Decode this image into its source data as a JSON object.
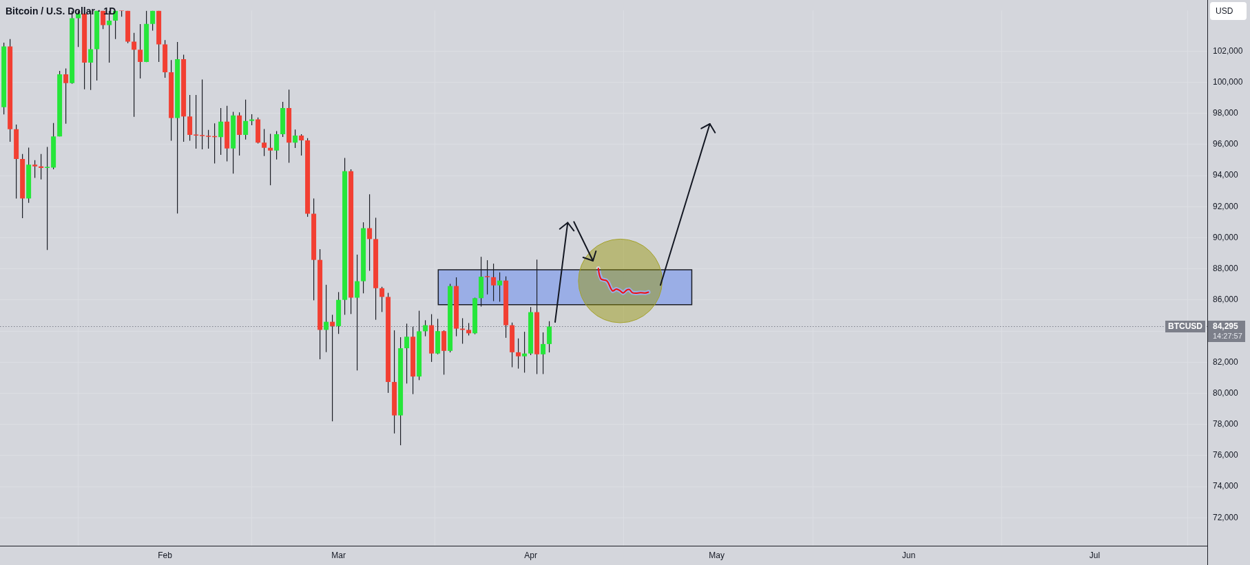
{
  "chart_data": {
    "type": "candlestick",
    "title": "Bitcoin / U.S. Dollar · 1D",
    "ylabel": "USD",
    "x": [
      "--01-06",
      "--01-07",
      "--01-08",
      "--01-09",
      "--01-10",
      "--01-11",
      "--01-12",
      "--01-13",
      "--01-14",
      "--01-15",
      "--01-16",
      "--01-17",
      "--01-18",
      "--01-19",
      "--01-20",
      "--01-21",
      "--01-22",
      "--01-23",
      "--01-24",
      "--01-25",
      "--01-26",
      "--01-27",
      "--01-28",
      "--01-29",
      "--01-30",
      "--01-31",
      "--02-01",
      "--02-02",
      "--02-03",
      "--02-04",
      "--02-05",
      "--02-06",
      "--02-07",
      "--02-08",
      "--02-09",
      "--02-10",
      "--02-11",
      "--02-12",
      "--02-13",
      "--02-14",
      "--02-15",
      "--02-16",
      "--02-17",
      "--02-18",
      "--02-19",
      "--02-20",
      "--02-21",
      "--02-22",
      "--02-23",
      "--02-24",
      "--02-25",
      "--02-26",
      "--02-27",
      "--02-28",
      "--03-01",
      "--03-02",
      "--03-03",
      "--03-04",
      "--03-05",
      "--03-06",
      "--03-07",
      "--03-08",
      "--03-09",
      "--03-10",
      "--03-11",
      "--03-12",
      "--03-13",
      "--03-14",
      "--03-15",
      "--03-16",
      "--03-17",
      "--03-18",
      "--03-19",
      "--03-20",
      "--03-21",
      "--03-22",
      "--03-23",
      "--03-24",
      "--03-25",
      "--03-26",
      "--03-27",
      "--03-28",
      "--03-29",
      "--03-30",
      "--03-31",
      "--04-01",
      "--04-02",
      "--04-03",
      "--04-04"
    ],
    "ohlc": [
      [
        98400,
        102550,
        97940,
        102310
      ],
      [
        102310,
        102780,
        96180,
        96980
      ],
      [
        96980,
        97280,
        92530,
        95070
      ],
      [
        95070,
        95390,
        91260,
        92530
      ],
      [
        92530,
        95800,
        92250,
        94710
      ],
      [
        94710,
        94990,
        93850,
        94590
      ],
      [
        94590,
        95390,
        93750,
        94490
      ],
      [
        94490,
        95840,
        89220,
        94520
      ],
      [
        94520,
        97380,
        94410,
        96520
      ],
      [
        96520,
        100730,
        96520,
        100510
      ],
      [
        100510,
        100890,
        97340,
        99950
      ],
      [
        99950,
        104600,
        99900,
        104120
      ],
      [
        104120,
        104600,
        102270,
        104420
      ],
      [
        104420,
        104600,
        99550,
        101270
      ],
      [
        101270,
        104600,
        99510,
        102130
      ],
      [
        102130,
        104600,
        100110,
        104600
      ],
      [
        104600,
        104600,
        103420,
        103680
      ],
      [
        103680,
        104600,
        101270,
        103960
      ],
      [
        103960,
        104600,
        102780,
        104600
      ],
      [
        104600,
        104600,
        104220,
        104600
      ],
      [
        104600,
        104600,
        102520,
        102620
      ],
      [
        102620,
        103180,
        97780,
        102090
      ],
      [
        102090,
        103740,
        100250,
        101310
      ],
      [
        101310,
        104600,
        101300,
        103760
      ],
      [
        103760,
        104600,
        103320,
        104600
      ],
      [
        104600,
        104600,
        101310,
        102440
      ],
      [
        102440,
        102720,
        100290,
        100650
      ],
      [
        100650,
        101430,
        96240,
        97700
      ],
      [
        97700,
        102590,
        91560,
        101490
      ],
      [
        101490,
        101770,
        96180,
        97800
      ],
      [
        97800,
        99190,
        96240,
        96620
      ],
      [
        96620,
        99190,
        95730,
        96580
      ],
      [
        96580,
        100180,
        95690,
        96540
      ],
      [
        96540,
        96940,
        95730,
        96500
      ],
      [
        96500,
        97360,
        94780,
        96480
      ],
      [
        96480,
        98350,
        95340,
        97470
      ],
      [
        97470,
        98490,
        94910,
        95740
      ],
      [
        95740,
        98100,
        94130,
        97870
      ],
      [
        97870,
        98070,
        95290,
        96620
      ],
      [
        96620,
        98890,
        96320,
        97520
      ],
      [
        97520,
        97950,
        97240,
        97620
      ],
      [
        97620,
        97740,
        96070,
        96120
      ],
      [
        96120,
        96990,
        95260,
        95790
      ],
      [
        95790,
        96690,
        93380,
        95610
      ],
      [
        95610,
        96860,
        95040,
        96660
      ],
      [
        96660,
        98740,
        96490,
        98350
      ],
      [
        98350,
        99530,
        94830,
        96120
      ],
      [
        96120,
        96960,
        95780,
        96570
      ],
      [
        96570,
        96660,
        95290,
        96260
      ],
      [
        96260,
        96410,
        91350,
        91550
      ],
      [
        91550,
        92530,
        85980,
        88580
      ],
      [
        88580,
        89270,
        82190,
        84080
      ],
      [
        84080,
        86980,
        82650,
        84600
      ],
      [
        84600,
        85050,
        78200,
        84320
      ],
      [
        84320,
        86510,
        83820,
        86010
      ],
      [
        86010,
        95140,
        85050,
        94280
      ],
      [
        94280,
        94410,
        85100,
        86150
      ],
      [
        86150,
        88920,
        81470,
        87210
      ],
      [
        87210,
        91000,
        86430,
        90620
      ],
      [
        90620,
        92800,
        87880,
        89920
      ],
      [
        89920,
        91290,
        84730,
        86760
      ],
      [
        86760,
        86850,
        85230,
        86200
      ],
      [
        86200,
        86460,
        80030,
        80730
      ],
      [
        80730,
        84050,
        77420,
        78580
      ],
      [
        78580,
        83610,
        76660,
        82900
      ],
      [
        82900,
        84480,
        80630,
        83640
      ],
      [
        83640,
        84290,
        79950,
        81080
      ],
      [
        81080,
        85310,
        80850,
        83990
      ],
      [
        83990,
        84700,
        83670,
        84380
      ],
      [
        84380,
        85090,
        82020,
        82560
      ],
      [
        82560,
        84790,
        82510,
        84000
      ],
      [
        84000,
        84050,
        81200,
        82730
      ],
      [
        82730,
        87040,
        82630,
        86900
      ],
      [
        86900,
        87460,
        83670,
        84160
      ],
      [
        84160,
        84830,
        83190,
        84080
      ],
      [
        84080,
        84520,
        83720,
        83860
      ],
      [
        83860,
        86150,
        83800,
        86120
      ],
      [
        86120,
        88780,
        85580,
        87500
      ],
      [
        87500,
        88560,
        86360,
        87470
      ],
      [
        87470,
        88340,
        85930,
        86940
      ],
      [
        86940,
        87780,
        85890,
        87250
      ],
      [
        87250,
        87520,
        83570,
        84380
      ],
      [
        84380,
        84550,
        81680,
        82640
      ],
      [
        82640,
        83530,
        81590,
        82380
      ],
      [
        82380,
        83960,
        81330,
        82560
      ],
      [
        82560,
        85550,
        82460,
        85220
      ],
      [
        85220,
        88600,
        81240,
        82510
      ],
      [
        82510,
        83920,
        81240,
        83170
      ],
      [
        83170,
        84640,
        82630,
        84295
      ]
    ],
    "colors": [
      "#26e63a",
      "#f23f32",
      "#f23f32",
      "#f23f32",
      "#26e63a",
      "#f23f32",
      "#f23f32",
      "#26e63a",
      "#26e63a",
      "#26e63a",
      "#f23f32",
      "#26e63a",
      "#26e63a",
      "#f23f32",
      "#26e63a",
      "#26e63a",
      "#f23f32",
      "#26e63a",
      "#26e63a",
      "#f23f32",
      "#f23f32",
      "#f23f32",
      "#f23f32",
      "#26e63a",
      "#26e63a",
      "#f23f32",
      "#f23f32",
      "#f23f32",
      "#26e63a",
      "#f23f32",
      "#f23f32",
      "#f23f32",
      "#f23f32",
      "#f23f32",
      "#f23f32",
      "#26e63a",
      "#f23f32",
      "#26e63a",
      "#f23f32",
      "#26e63a",
      "#26e63a",
      "#f23f32",
      "#f23f32",
      "#f23f32",
      "#26e63a",
      "#26e63a",
      "#f23f32",
      "#26e63a",
      "#f23f32",
      "#f23f32",
      "#f23f32",
      "#f23f32",
      "#26e63a",
      "#f23f32",
      "#26e63a",
      "#26e63a",
      "#f23f32",
      "#26e63a",
      "#26e63a",
      "#f23f32",
      "#f23f32",
      "#f23f32",
      "#f23f32",
      "#f23f32",
      "#26e63a",
      "#26e63a",
      "#f23f32",
      "#26e63a",
      "#26e63a",
      "#f23f32",
      "#26e63a",
      "#f23f32",
      "#26e63a",
      "#f23f32",
      "#f23f32",
      "#f23f32",
      "#26e63a",
      "#26e63a",
      "#f23f32",
      "#f23f32",
      "#26e63a",
      "#f23f32",
      "#f23f32",
      "#f23f32",
      "#26e63a",
      "#26e63a",
      "#f23f32",
      "#26e63a",
      "#26e63a"
    ],
    "series": [
      {
        "type": "line",
        "color": "#f20d0d",
        "x": [
          "--04-11T22:00",
          "--04-12T01:00",
          "--04-12T10:00",
          "--04-13T04:00",
          "--04-13T12:00",
          "--04-13T22:00",
          "--04-14T06:00",
          "--04-14T20:00",
          "--04-15T09:00",
          "--04-15T22:00",
          "--04-16T12:00",
          "--04-16T21:00",
          "--04-17T10:00",
          "--04-17T23:00",
          "--04-18T17:00",
          "--04-19T11:00",
          "--04-20T00:00"
        ],
        "values": [
          88030,
          87690,
          87330,
          87260,
          87120,
          86750,
          86580,
          86710,
          86610,
          86450,
          86650,
          86680,
          86470,
          86440,
          86470,
          86450,
          86510
        ]
      }
    ],
    "xlim": [
      "--01-05T09:00",
      "--07-19T04:00"
    ],
    "xticks": [
      {
        "value": "--02-01",
        "label": "Feb"
      },
      {
        "value": "--03-01",
        "label": "Mar"
      },
      {
        "value": "--04-01",
        "label": "Apr"
      },
      {
        "value": "--05-01",
        "label": "May"
      },
      {
        "value": "--06-01",
        "label": "Jun"
      },
      {
        "value": "--07-01",
        "label": "Jul"
      }
    ],
    "ylim": [
      70200,
      104620
    ],
    "yticks": [
      {
        "value": 72000,
        "label": "72,000"
      },
      {
        "value": 74000,
        "label": "74,000"
      },
      {
        "value": 76000,
        "label": "76,000"
      },
      {
        "value": 78000,
        "label": "78,000"
      },
      {
        "value": 80000,
        "label": "80,000"
      },
      {
        "value": 82000,
        "label": "82,000"
      },
      {
        "value": 84000,
        "label": null
      },
      {
        "value": 86000,
        "label": "86,000"
      },
      {
        "value": 88000,
        "label": "88,000"
      },
      {
        "value": 90000,
        "label": "90,000"
      },
      {
        "value": 92000,
        "label": "92,000"
      },
      {
        "value": 94000,
        "label": "94,000"
      },
      {
        "value": 96000,
        "label": "96,000"
      },
      {
        "value": 98000,
        "label": "98,000"
      },
      {
        "value": 100000,
        "label": "100,000"
      },
      {
        "value": 102000,
        "label": "102,000"
      }
    ],
    "grid": true,
    "ref_lines": [
      {
        "axis": "y",
        "value": 84295,
        "label": "BTCUSD",
        "line_style": "dotted",
        "color": "#7c7f8a"
      }
    ],
    "bands": [
      {
        "axis": "y",
        "from": 85700,
        "to": 87940,
        "color": "#9aaee6"
      }
    ],
    "annotations": [
      "84,295",
      "14:27:57"
    ]
  }
}
